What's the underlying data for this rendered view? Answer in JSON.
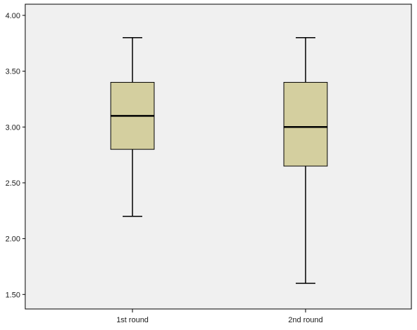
{
  "chart_data": {
    "type": "box",
    "categories": [
      "1st round",
      "2nd round"
    ],
    "boxes": [
      {
        "category": "1st round",
        "min": 2.2,
        "q1": 2.8,
        "median": 3.1,
        "q3": 3.4,
        "max": 3.8
      },
      {
        "category": "2nd round",
        "min": 1.6,
        "q1": 2.65,
        "median": 3.0,
        "q3": 3.4,
        "max": 3.8
      }
    ],
    "y_ticks": [
      "1.50",
      "2.00",
      "2.50",
      "3.00",
      "3.50",
      "4.00"
    ],
    "ylim": [
      1.37,
      4.1
    ],
    "grid": false,
    "colors": {
      "plot_background": "#f0f0f0",
      "box_fill": "#d4cf9f",
      "stroke": "#000000"
    }
  }
}
